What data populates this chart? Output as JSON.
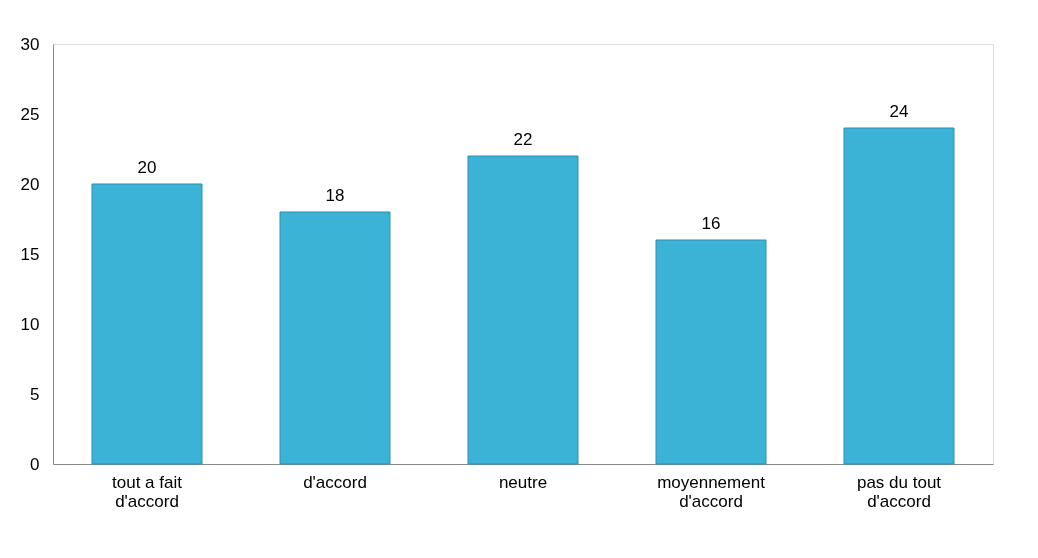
{
  "chart_data": {
    "type": "bar",
    "categories": [
      "tout a fait d'accord",
      "d'accord",
      "neutre",
      "moyennement d'accord",
      "pas du tout d'accord"
    ],
    "values": [
      20,
      18,
      22,
      16,
      24
    ],
    "color": "#3bb3d6",
    "ylim": [
      0,
      30
    ],
    "yticks": [
      0,
      5,
      10,
      15,
      20,
      25,
      30
    ],
    "data_labels": true,
    "grid": false
  }
}
